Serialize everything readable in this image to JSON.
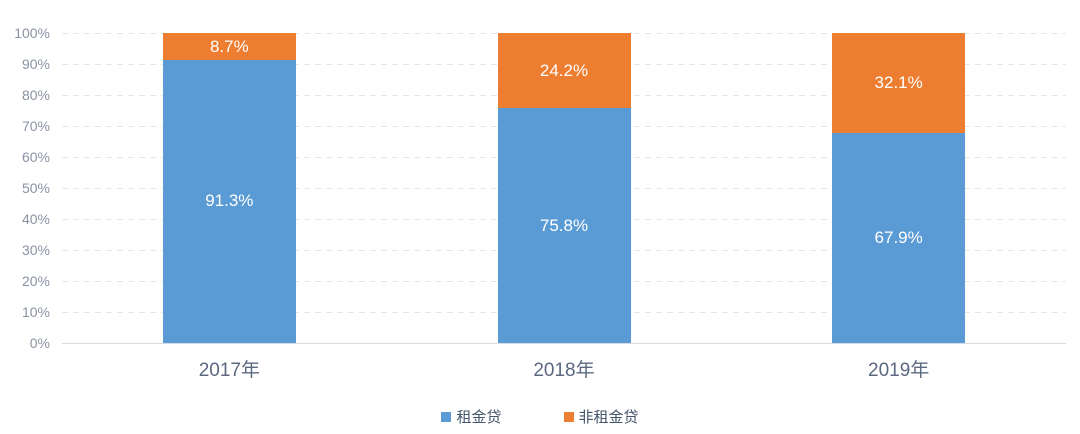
{
  "chart_data": {
    "type": "bar",
    "stacked": true,
    "unit": "percent",
    "title": "",
    "xlabel": "",
    "ylabel": "",
    "categories": [
      "2017年",
      "2018年",
      "2019年"
    ],
    "series": [
      {
        "name": "租金贷",
        "color": "#5B9BD5",
        "values": [
          91.3,
          75.8,
          67.9
        ],
        "labels": [
          "91.3%",
          "75.8%",
          "67.9%"
        ]
      },
      {
        "name": "非租金贷",
        "color": "#ED7D31",
        "values": [
          8.7,
          24.2,
          32.1
        ],
        "labels": [
          "8.7%",
          "24.2%",
          "32.1%"
        ]
      }
    ],
    "ylim": [
      0,
      100
    ],
    "yticks": [
      0,
      10,
      20,
      30,
      40,
      50,
      60,
      70,
      80,
      90,
      100
    ],
    "ytick_labels": [
      "0%",
      "10%",
      "20%",
      "30%",
      "40%",
      "50%",
      "60%",
      "70%",
      "80%",
      "90%",
      "100%"
    ],
    "grid": "horizontal-dashed",
    "legend_position": "bottom"
  },
  "colors": {
    "background": "#ffffff",
    "series_blue": "#5B9BD5",
    "series_orange": "#ED7D31",
    "gridline": "#e4e5e8",
    "baseline": "#d7dae0",
    "ytick_text": "#8a92a3",
    "xtick_text": "#5c6880",
    "legend_text": "#44546a",
    "bar_label_text": "#ffffff"
  }
}
